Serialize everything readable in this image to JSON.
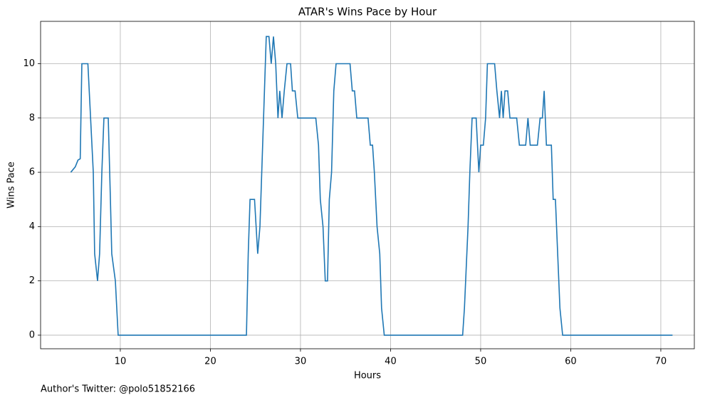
{
  "chart_data": {
    "type": "line",
    "title": "ATAR's Wins Pace by Hour",
    "x_label": "Hours",
    "y_label": "Wins Pace",
    "footer": "Author's Twitter: @polo51852166",
    "x": [
      4.5,
      5.0,
      5.3,
      5.55,
      5.73,
      6.4,
      7.0,
      7.15,
      7.47,
      7.7,
      7.95,
      8.18,
      8.66,
      8.9,
      9.05,
      9.45,
      9.76,
      24.0,
      24.2,
      24.4,
      24.9,
      25.25,
      25.5,
      25.8,
      26.0,
      26.2,
      26.5,
      26.75,
      27.0,
      27.25,
      27.5,
      27.7,
      27.95,
      28.2,
      28.5,
      28.9,
      29.1,
      29.4,
      29.7,
      31.7,
      32.0,
      32.2,
      32.5,
      32.75,
      33.0,
      33.2,
      33.45,
      33.7,
      33.95,
      35.5,
      35.75,
      36.0,
      36.25,
      37.5,
      37.75,
      38.0,
      38.2,
      38.5,
      38.8,
      39.0,
      39.3,
      48.0,
      48.2,
      48.6,
      48.8,
      49.05,
      49.5,
      49.8,
      50.0,
      50.3,
      50.55,
      50.75,
      51.55,
      51.8,
      52.1,
      52.3,
      52.5,
      52.7,
      53.0,
      53.25,
      54.0,
      54.3,
      55.0,
      55.25,
      55.5,
      56.3,
      56.6,
      56.85,
      57.05,
      57.3,
      57.85,
      58.05,
      58.3,
      58.55,
      58.8,
      59.1,
      71.3
    ],
    "series": [
      {
        "name": "Wins Pace",
        "color": "#1f77b4",
        "values": [
          6,
          6.2,
          6.45,
          6.5,
          10,
          10,
          6,
          3,
          2,
          3,
          6,
          8,
          8,
          5,
          3,
          2,
          0,
          0,
          3,
          5,
          5,
          3,
          4,
          7,
          9,
          11,
          11,
          10,
          11,
          10,
          8,
          9,
          8,
          9,
          10,
          10,
          9,
          9,
          8,
          8,
          7,
          5,
          4,
          2,
          2,
          5,
          6,
          9,
          10,
          10,
          9,
          9,
          8,
          8,
          7,
          7,
          6,
          4,
          3,
          1,
          0,
          0,
          1,
          4,
          6,
          8,
          8,
          6,
          7,
          7,
          8,
          10,
          10,
          9,
          8,
          9,
          8,
          9,
          9,
          8,
          8,
          7,
          7,
          8,
          7,
          7,
          8,
          8,
          9,
          7,
          7,
          5,
          5,
          3,
          1,
          0,
          0
        ]
      }
    ],
    "xlim": [
      1.15,
      73.72
    ],
    "ylim": [
      -0.5,
      11.56
    ],
    "xticks": [
      10,
      20,
      30,
      40,
      50,
      60,
      70
    ],
    "yticks": [
      0,
      2,
      4,
      6,
      8,
      10
    ],
    "grid": true
  }
}
